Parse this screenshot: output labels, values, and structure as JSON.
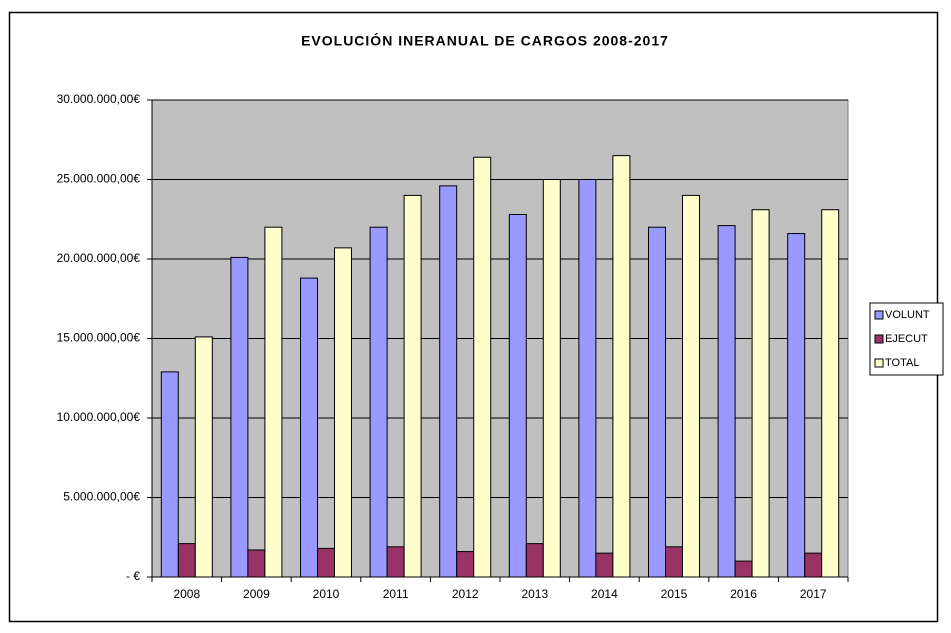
{
  "chart_data": {
    "type": "bar",
    "title": "EVOLUCIÓN INERANUAL DE CARGOS 2008-2017",
    "categories": [
      "2008",
      "2009",
      "2010",
      "2011",
      "2012",
      "2013",
      "2014",
      "2015",
      "2016",
      "2017"
    ],
    "series": [
      {
        "name": "VOLUNT",
        "color": "#9999ff",
        "values": [
          12900000,
          20100000,
          18800000,
          22000000,
          24600000,
          22800000,
          25000000,
          22000000,
          22100000,
          21600000
        ]
      },
      {
        "name": "EJECUT",
        "color": "#993366",
        "values": [
          2100000,
          1700000,
          1800000,
          1900000,
          1600000,
          2100000,
          1500000,
          1900000,
          1000000,
          1500000
        ]
      },
      {
        "name": "TOTAL",
        "color": "#ffffcc",
        "values": [
          15100000,
          22000000,
          20700000,
          24000000,
          26400000,
          25000000,
          26500000,
          24000000,
          23100000,
          23100000
        ]
      }
    ],
    "ylim": [
      0,
      30000000
    ],
    "yticks": [
      {
        "value": 0,
        "label": "-   €"
      },
      {
        "value": 5000000,
        "label": "5.000.000,00€"
      },
      {
        "value": 10000000,
        "label": "10.000.000,00€"
      },
      {
        "value": 15000000,
        "label": "15.000.000,00€"
      },
      {
        "value": 20000000,
        "label": "20.000.000,00€"
      },
      {
        "value": 25000000,
        "label": "25.000.000,00€"
      },
      {
        "value": 30000000,
        "label": "30.000.000,00€"
      }
    ],
    "grid": true,
    "legend": "right",
    "plot_background": "#c0c0c0"
  }
}
